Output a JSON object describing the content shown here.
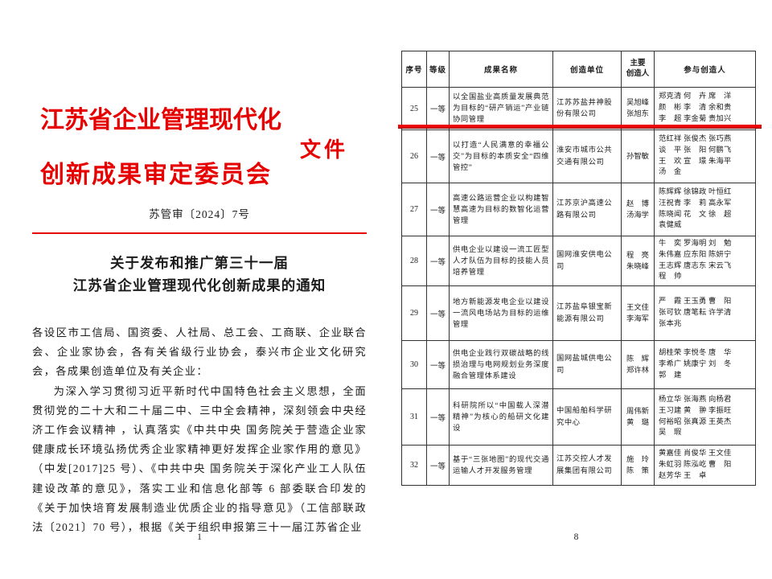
{
  "colors": {
    "accent_red": "#e60000",
    "annotation_red": "#ea0000",
    "table_border": "#333333",
    "text": "#1c1c1c"
  },
  "left_page": {
    "letterhead_line1": "江苏省企业管理现代化",
    "letterhead_line2": "创新成果审定委员会",
    "letterhead_suffix": "文件",
    "doc_number": "苏管审〔2024〕7号",
    "notice_title_line1": "关于发布和推广第三十一届",
    "notice_title_line2": "江苏省企业管理现代化创新成果的通知",
    "salutation": "各设区市工信局、国资委、人社局、总工会、工商联、企业联合会、企业家协会，各有关省级行业协会，泰兴市企业文化研究会，各成果创造单位及有关企业：",
    "paragraph1": "为深入学习贯彻习近平新时代中国特色社会主义思想，全面贯彻党的二十大和二十届二中、三中全会精神，深刻领会中央经济工作会议精神 ，认真落实《中共中央 国务院关于营造企业家健康成长环境弘扬优秀企业家精神更好发挥企业家作用的意见》（中发[2017]25 号）、《中共中央 国务院关于深化产业工人队伍建设改革的意见》，落实工业和信息化部等 6 部委联合印发的《关于加快培育发展制造业优质企业的指导意见》（工信部联政法〔2021〕70 号），根据《关于组织申报第三十一届江苏省企业",
    "page_number": "1"
  },
  "right_page": {
    "table": {
      "headers": [
        "序号",
        "等级",
        "成果名称",
        "创造单位",
        "主要\n创造人",
        "参与创造人"
      ],
      "rows": [
        {
          "no": "25",
          "grade": "一等",
          "name": "以全国盐业高质量发展典范为目标的“研产销运”产业链协同管理",
          "unit": "江苏苏盐井神股份有限公司",
          "main": "吴旭峰\n张旭东",
          "participants": "郑克清 何　卉 席　洋\n颜　彬 李　清 余和贵\n李　超 李金菊 贵加兴"
        },
        {
          "no": "26",
          "grade": "一等",
          "name": "以打造“人民满意的幸福公交”为目标的本质安全“四维管控”",
          "unit": "淮安市城市公共交通有限公司",
          "main": "孙智敏",
          "participants": "范红祥 张俊杰 张巧燕\n谈　平 张　阳 何鹏飞\n王　欢 宣　璟 朱海平\n汤　金"
        },
        {
          "no": "27",
          "grade": "一等",
          "name": "高速公路运营企业以构建智慧高速为目标的数智化运营管理",
          "unit": "江苏京沪高速公路有限公司",
          "main": "赵　博\n汤海学",
          "participants": "陈辉辉 徐锦政 叶恒红\n汪祝青 李　莉 高永军\n陈晓闻 花　文 徐　超\n袁健威"
        },
        {
          "no": "28",
          "grade": "一等",
          "name": "供电企业以建设一流工匠型人才队伍为目标的技能人员培养管理",
          "unit": "国网淮安供电公司",
          "main": "程　亮\n朱晓峰",
          "participants": "牛　奕 罗海明 刘　勉\n朱伟嘉 应东阳 陈妍宁\n王志辉 唐志东 宋云飞\n程　帅"
        },
        {
          "no": "29",
          "grade": "一等",
          "name": "地方新能源发电企业以建设一流风电场站为目标的运维管理",
          "unit": "江苏盐阜银宝新能源有限公司",
          "main": "王文佳\n李海军",
          "participants": "严　霞 王玉勇 曹　阳\n张可钦 唐笔耘 许学清\n张本兆"
        },
        {
          "no": "30",
          "grade": "一等",
          "name": "供电企业践行双碳战略的线损治理与电网规划业务深度融合管理体系建设",
          "unit": "国网盐城供电公司",
          "main": "陈　辉\n郑许林",
          "participants": "胡桂荣 李悦冬 唐　华\n李希广 姚康宁 刘　冬\n郭　建"
        },
        {
          "no": "31",
          "grade": "一等",
          "name": "科研院所以“中国载人深潜精神”为核心的船研文化建设",
          "unit": "中国船舶科学研究中心",
          "main": "周伟新\n黄　璐",
          "participants": "杨立华 张海燕 向杨君\n王习建 黄　翀 李振旺\n何裕昭 张真源 王英杰\n吴　瑕"
        },
        {
          "no": "32",
          "grade": "一等",
          "name": "基于“三张地图”的现代交通运输人才开发服务管理",
          "unit": "江苏交控人才发展集团有限公司",
          "main": "施　玲\n陈　策",
          "participants": "黄嘉佳 肖俊华 王文佳\n朱虹羽 陈泓屹 曹　阳\n赵芳华 王　卓"
        }
      ]
    },
    "page_number": "8"
  }
}
